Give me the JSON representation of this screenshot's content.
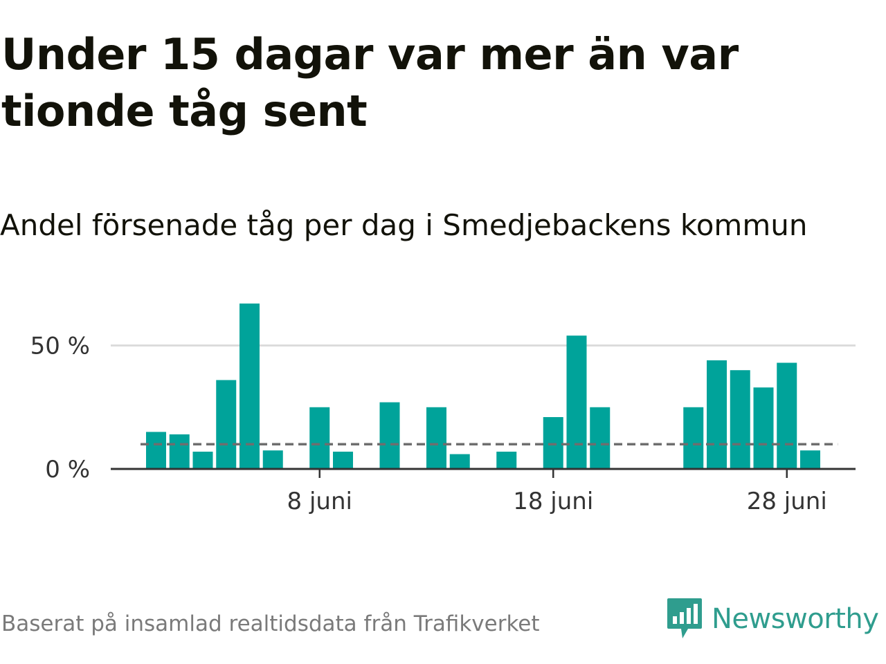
{
  "title": "Under 15 dagar var mer än var tionde tåg sent",
  "subtitle": "Andel försenade tåg per dag i Smedjebackens kommun",
  "footer": "Baserat på insamlad realtidsdata från Trafikverket",
  "brand": "Newsworthy",
  "colors": {
    "bar": "#00a39a",
    "reference_line": "#6e6e6e",
    "grid": "#dcdcdc",
    "axis": "#333333",
    "brand": "#2f9d8e"
  },
  "chart_data": {
    "type": "bar",
    "x": [
      "1 juni",
      "2 juni",
      "3 juni",
      "4 juni",
      "5 juni",
      "6 juni",
      "7 juni",
      "8 juni",
      "9 juni",
      "10 juni",
      "11 juni",
      "12 juni",
      "13 juni",
      "14 juni",
      "15 juni",
      "16 juni",
      "17 juni",
      "18 juni",
      "19 juni",
      "20 juni",
      "21 juni",
      "22 juni",
      "23 juni",
      "24 juni",
      "25 juni",
      "26 juni",
      "27 juni",
      "28 juni",
      "29 juni",
      "30 juni"
    ],
    "values": [
      15,
      14,
      7,
      36,
      67,
      7.5,
      0,
      25,
      7,
      0,
      27,
      0,
      25,
      6,
      0,
      7,
      0,
      21,
      54,
      25,
      0,
      0,
      0,
      25,
      44,
      40,
      33,
      43,
      7.5,
      0
    ],
    "reference_value": 10,
    "ylim": [
      0,
      70
    ],
    "y_ticks": [
      0,
      50
    ],
    "y_tick_labels": [
      "0 %",
      "50 %"
    ],
    "x_ticks": [
      "8 juni",
      "18 juni",
      "28 juni"
    ],
    "grid": true,
    "xlabel": "",
    "ylabel": ""
  }
}
